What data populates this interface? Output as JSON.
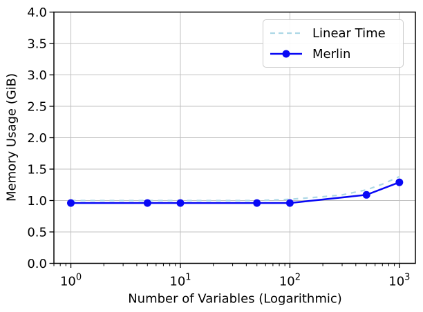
{
  "chart_data": {
    "type": "line",
    "title": "",
    "xlabel": "Number of Variables (Logarithmic)",
    "ylabel": "Memory Usage (GiB)",
    "x_scale": "log",
    "xlim": [
      0.7,
      1400
    ],
    "ylim": [
      0,
      4
    ],
    "x_ticks": [
      1,
      10,
      100,
      1000
    ],
    "y_ticks": [
      0.0,
      0.5,
      1.0,
      1.5,
      2.0,
      2.5,
      3.0,
      3.5,
      4.0
    ],
    "grid": true,
    "grid_color": "#c0c0c0",
    "axis_color": "#000000",
    "background_color": "#ffffff",
    "legend_position": "upper-right",
    "series": [
      {
        "name": "Linear Time",
        "color": "#add8e6",
        "line_style": "dashed",
        "line_width": 2.2,
        "marker": "none",
        "x": [
          1,
          5,
          10,
          50,
          100,
          200,
          300,
          500,
          700,
          1000
        ],
        "y": [
          1.0,
          1.0,
          1.0,
          1.0,
          1.02,
          1.06,
          1.09,
          1.17,
          1.26,
          1.38
        ]
      },
      {
        "name": "Merlin",
        "color": "#0808f5",
        "line_style": "solid",
        "line_width": 2.5,
        "marker": "circle",
        "marker_size": 5.5,
        "x": [
          1,
          5,
          10,
          50,
          100,
          500,
          1000
        ],
        "y": [
          0.96,
          0.96,
          0.96,
          0.96,
          0.96,
          1.09,
          1.29
        ]
      }
    ]
  }
}
